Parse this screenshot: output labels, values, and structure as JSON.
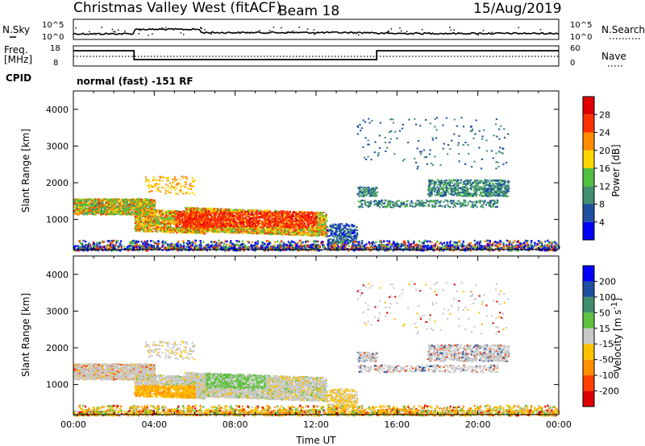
{
  "header": {
    "radar": "Christmas Valley West (fitACF)",
    "beam": "Beam 18",
    "date": "15/Aug/2019"
  },
  "noise_panel": {
    "left_label": "N.Sky",
    "right_label": "N.Search",
    "left_ticks": [
      "10^5",
      "10^0"
    ],
    "right_ticks": [
      "10^5",
      "10^0"
    ]
  },
  "freq_panel": {
    "left_label_1": "Freq.",
    "left_label_2": "[MHz]",
    "right_label": "Nave",
    "left_ticks": [
      "18",
      "8"
    ],
    "right_ticks": [
      "60",
      "0"
    ]
  },
  "cpid": {
    "label": "CPID",
    "value": "normal (fast) -151 RF"
  },
  "colors": {
    "power": [
      "#0000ff",
      "#1e4fa0",
      "#3f8f6f",
      "#4fbf3f",
      "#ffd700",
      "#ff8c00",
      "#ff3000",
      "#e00000"
    ],
    "velocity": [
      "#e00000",
      "#ff4000",
      "#ff9000",
      "#ffc000",
      "#c8c8c8",
      "#60c040",
      "#3f8f6f",
      "#1e4fa0",
      "#0000ff"
    ]
  },
  "chart_data": [
    {
      "type": "heatmap",
      "panel": "power",
      "ylabel": "Slant Range [km]",
      "yticks": [
        "1000",
        "2000",
        "3000",
        "4000"
      ],
      "ylim": [
        180,
        4500
      ],
      "x_ticks": [
        "00:00",
        "04:00",
        "08:00",
        "12:00",
        "16:00",
        "20:00",
        "00:00"
      ],
      "colorbar_label": "Power [dB]",
      "colorbar_ticks": [
        "4",
        "8",
        "12",
        "16",
        "20",
        "24",
        "28"
      ],
      "colorbar_range": [
        0,
        32
      ]
    },
    {
      "type": "heatmap",
      "panel": "velocity",
      "ylabel": "Slant Range [km]",
      "yticks": [
        "1000",
        "2000",
        "3000",
        "4000"
      ],
      "ylim": [
        180,
        4500
      ],
      "x_ticks": [
        "00:00",
        "04:00",
        "08:00",
        "12:00",
        "16:00",
        "20:00",
        "00:00"
      ],
      "xlabel": "Time UT",
      "colorbar_label": "Velocity [m s",
      "colorbar_label_sup": "-1",
      "colorbar_ticks": [
        "200",
        "100",
        "50",
        "15",
        "-15",
        "-50",
        "-100",
        "-200"
      ]
    }
  ]
}
